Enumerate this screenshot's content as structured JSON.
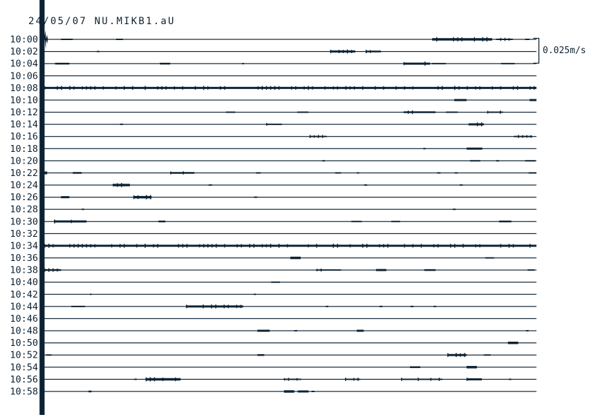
{
  "chart_data": {
    "type": "line",
    "title": "24/05/07 NU.MIKB1.aU",
    "scale_label": "0.025m/s",
    "ink_color": "#0c2233",
    "background_color": "#ffffff",
    "x_axis": {
      "start_time": "10:00",
      "end_time": "10:58",
      "row_interval_minutes": 2,
      "rows_count": 30
    },
    "legend_position": "right",
    "grid": false,
    "rows": [
      {
        "time": "10:00",
        "spike_at_start": true,
        "events": [
          [
            0.034,
            0.058,
            2
          ],
          [
            0.146,
            0.16,
            2
          ],
          [
            0.788,
            0.91,
            3.5
          ],
          [
            0.918,
            0.952,
            2
          ],
          [
            0.977,
            0.986,
            2
          ]
        ]
      },
      {
        "time": "10:02",
        "events": [
          [
            0.107,
            0.112,
            2
          ],
          [
            0.581,
            0.632,
            3
          ],
          [
            0.653,
            0.684,
            2.5
          ]
        ]
      },
      {
        "time": "10:04",
        "events": [
          [
            0.022,
            0.051,
            2.5
          ],
          [
            0.235,
            0.256,
            2.5
          ],
          [
            0.402,
            0.406,
            2
          ],
          [
            0.73,
            0.784,
            3
          ],
          [
            0.787,
            0.816,
            2
          ],
          [
            0.928,
            0.956,
            2
          ]
        ]
      },
      {
        "time": "10:06",
        "events": []
      },
      {
        "time": "10:08",
        "events": [
          [
            0.0,
            1.0,
            3
          ]
        ]
      },
      {
        "time": "10:10",
        "events": [
          [
            0.833,
            0.858,
            3
          ],
          [
            0.986,
            1.0,
            3
          ]
        ]
      },
      {
        "time": "10:12",
        "events": [
          [
            0.369,
            0.388,
            2
          ],
          [
            0.514,
            0.537,
            2
          ],
          [
            0.73,
            0.795,
            2.5
          ],
          [
            0.816,
            0.84,
            2
          ],
          [
            0.9,
            0.932,
            2
          ]
        ]
      },
      {
        "time": "10:14",
        "events": [
          [
            0.154,
            0.16,
            2
          ],
          [
            0.451,
            0.483,
            2
          ],
          [
            0.862,
            0.893,
            3
          ]
        ]
      },
      {
        "time": "10:16",
        "events": [
          [
            0.539,
            0.574,
            2
          ],
          [
            0.954,
            0.992,
            2
          ]
        ]
      },
      {
        "time": "10:18",
        "events": [
          [
            0.77,
            0.775,
            2
          ],
          [
            0.858,
            0.89,
            3
          ]
        ]
      },
      {
        "time": "10:20",
        "events": [
          [
            0.565,
            0.57,
            2
          ],
          [
            0.865,
            0.886,
            2
          ],
          [
            0.918,
            0.924,
            2
          ],
          [
            0.977,
            0.998,
            2
          ]
        ]
      },
      {
        "time": "10:22",
        "events": [
          [
            0.0,
            0.006,
            4
          ],
          [
            0.058,
            0.076,
            2.5
          ],
          [
            0.256,
            0.305,
            2.5
          ],
          [
            0.43,
            0.44,
            2
          ],
          [
            0.591,
            0.603,
            2
          ],
          [
            0.635,
            0.64,
            2
          ],
          [
            0.798,
            0.805,
            2
          ],
          [
            0.834,
            0.84,
            2
          ],
          [
            0.984,
            1.0,
            2
          ]
        ]
      },
      {
        "time": "10:24",
        "events": [
          [
            0.139,
            0.174,
            3.5
          ],
          [
            0.334,
            0.341,
            2
          ],
          [
            0.65,
            0.656,
            2
          ],
          [
            0.844,
            0.85,
            2
          ]
        ]
      },
      {
        "time": "10:26",
        "events": [
          [
            0.034,
            0.051,
            3
          ],
          [
            0.181,
            0.218,
            3.5
          ],
          [
            0.426,
            0.433,
            2
          ]
        ]
      },
      {
        "time": "10:28",
        "events": [
          [
            0.076,
            0.081,
            2
          ],
          [
            0.83,
            0.836,
            2
          ]
        ]
      },
      {
        "time": "10:30",
        "events": [
          [
            0.02,
            0.086,
            3
          ],
          [
            0.232,
            0.246,
            2.5
          ],
          [
            0.624,
            0.645,
            2
          ],
          [
            0.705,
            0.723,
            2
          ],
          [
            0.924,
            0.949,
            2.5
          ]
        ]
      },
      {
        "time": "10:32",
        "events": []
      },
      {
        "time": "10:34",
        "events": [
          [
            0.0,
            1.0,
            3
          ]
        ]
      },
      {
        "time": "10:36",
        "events": [
          [
            0.5,
            0.521,
            3.5
          ],
          [
            0.896,
            0.914,
            2
          ]
        ]
      },
      {
        "time": "10:38",
        "events": [
          [
            0.0,
            0.034,
            2.5
          ],
          [
            0.553,
            0.603,
            2
          ],
          [
            0.674,
            0.695,
            3
          ],
          [
            0.772,
            0.795,
            2.5
          ],
          [
            0.982,
            0.996,
            2
          ]
        ]
      },
      {
        "time": "10:40",
        "events": [
          [
            0.461,
            0.479,
            2
          ]
        ]
      },
      {
        "time": "10:42",
        "events": [
          [
            0.093,
            0.096,
            2
          ],
          [
            0.426,
            0.43,
            2
          ]
        ]
      },
      {
        "time": "10:44",
        "events": [
          [
            0.055,
            0.083,
            2
          ],
          [
            0.288,
            0.404,
            3
          ],
          [
            0.572,
            0.577,
            2
          ],
          [
            0.681,
            0.687,
            2
          ],
          [
            0.744,
            0.75,
            2
          ],
          [
            0.791,
            0.796,
            2
          ]
        ]
      },
      {
        "time": "10:46",
        "events": []
      },
      {
        "time": "10:48",
        "events": [
          [
            0.433,
            0.458,
            3
          ],
          [
            0.508,
            0.514,
            2
          ],
          [
            0.635,
            0.649,
            3
          ],
          [
            0.979,
            0.984,
            2
          ]
        ]
      },
      {
        "time": "10:50",
        "events": [
          [
            0.942,
            0.963,
            3.5
          ]
        ]
      },
      {
        "time": "10:52",
        "events": [
          [
            0.004,
            0.015,
            2
          ],
          [
            0.433,
            0.447,
            2.5
          ],
          [
            0.819,
            0.858,
            3
          ],
          [
            0.893,
            0.907,
            2
          ]
        ]
      },
      {
        "time": "10:54",
        "events": [
          [
            0.743,
            0.764,
            2.5
          ],
          [
            0.858,
            0.879,
            3.5
          ]
        ]
      },
      {
        "time": "10:56",
        "events": [
          [
            0.183,
            0.188,
            2
          ],
          [
            0.206,
            0.277,
            3.5
          ],
          [
            0.487,
            0.522,
            2
          ],
          [
            0.611,
            0.642,
            2
          ],
          [
            0.725,
            0.809,
            2
          ],
          [
            0.858,
            0.889,
            3
          ],
          [
            0.944,
            0.949,
            2
          ]
        ]
      },
      {
        "time": "10:58",
        "events": [
          [
            0.09,
            0.096,
            2.5
          ],
          [
            0.487,
            0.508,
            3.5
          ],
          [
            0.515,
            0.537,
            3
          ],
          [
            0.543,
            0.549,
            2
          ]
        ]
      }
    ]
  }
}
